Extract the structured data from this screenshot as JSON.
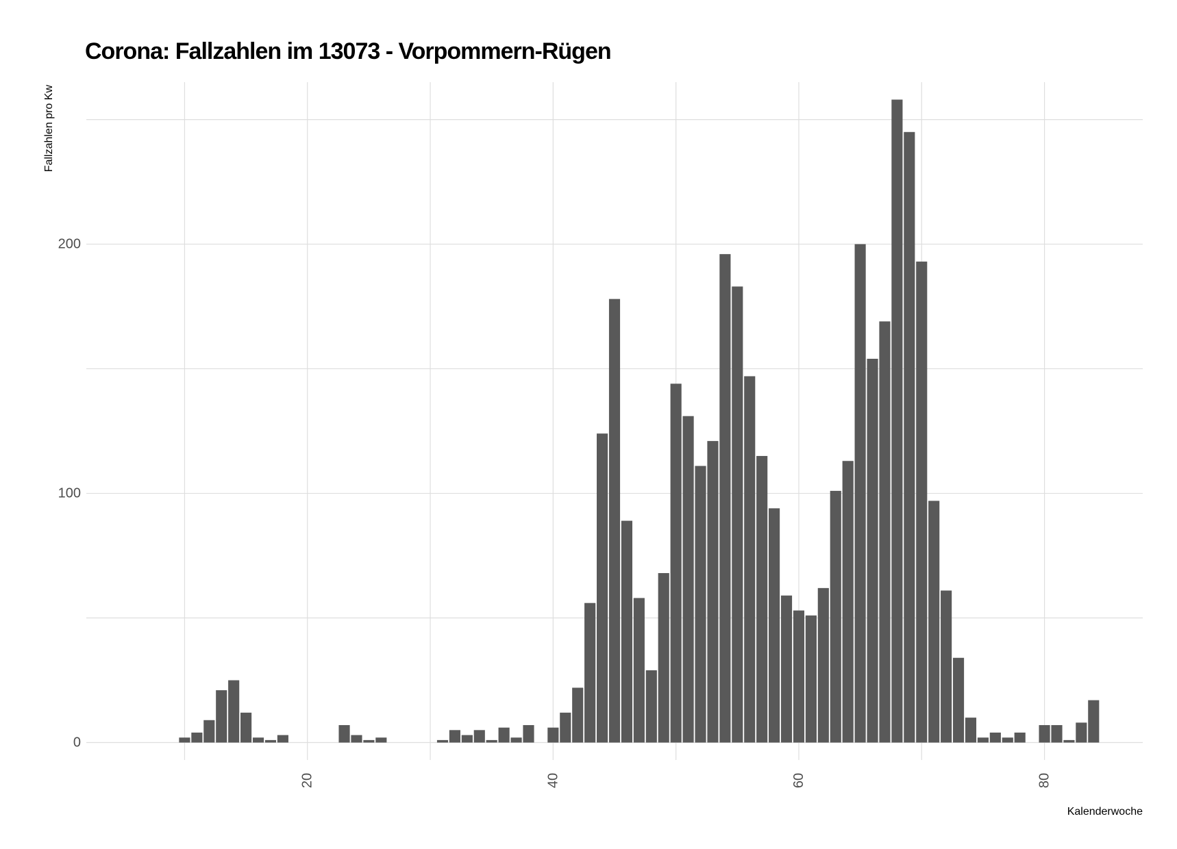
{
  "chart_data": {
    "type": "bar",
    "title": "Corona: Fallzahlen im 13073 - Vorpommern-Rügen",
    "xlabel": "Kalenderwoche",
    "ylabel": "Fallzahlen pro Kw",
    "xlim": [
      2,
      88
    ],
    "ylim": [
      -7,
      265
    ],
    "x_ticks": [
      20,
      40,
      60,
      80
    ],
    "y_ticks": [
      0,
      100,
      200
    ],
    "grid": true,
    "bar_color": "#595959",
    "x": [
      10,
      11,
      12,
      13,
      14,
      15,
      16,
      17,
      18,
      23,
      24,
      25,
      26,
      31,
      32,
      33,
      34,
      35,
      36,
      37,
      38,
      40,
      41,
      42,
      43,
      44,
      45,
      46,
      47,
      48,
      49,
      50,
      51,
      52,
      53,
      54,
      55,
      56,
      57,
      58,
      59,
      60,
      61,
      62,
      63,
      64,
      65,
      66,
      67,
      68,
      69,
      70,
      71,
      72,
      73,
      74,
      75,
      76,
      77,
      78,
      80,
      81,
      82,
      83,
      84
    ],
    "values": [
      2,
      4,
      9,
      21,
      25,
      12,
      2,
      1,
      3,
      7,
      3,
      1,
      2,
      1,
      5,
      3,
      5,
      1,
      6,
      2,
      7,
      6,
      12,
      22,
      56,
      124,
      178,
      89,
      58,
      29,
      68,
      144,
      131,
      111,
      121,
      196,
      183,
      147,
      115,
      94,
      59,
      53,
      51,
      62,
      101,
      113,
      200,
      154,
      169,
      258,
      245,
      193,
      97,
      61,
      34,
      10,
      2,
      4,
      2,
      4,
      7,
      7,
      1,
      8,
      17
    ]
  }
}
